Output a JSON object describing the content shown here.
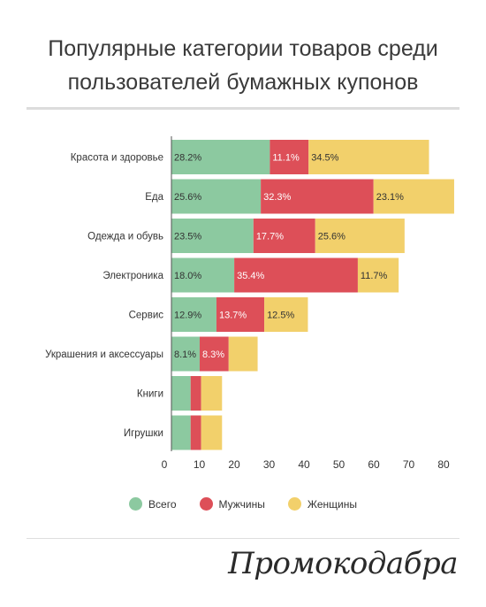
{
  "title": {
    "line1": "Популярные категории товаров среди",
    "line2": "пользователей бумажных купонов"
  },
  "brand": "Промокодабра",
  "colors": {
    "all": "#8cc9a0",
    "men": "#dd4f58",
    "women": "#f2d06b"
  },
  "chart_data": {
    "type": "bar",
    "orientation": "horizontal",
    "stacked": true,
    "categories": [
      "Красота и здоровье",
      "Еда",
      "Одежда и обувь",
      "Электроника",
      "Сервис",
      "Украшения и аксессуары",
      "Книги",
      "Игрушки"
    ],
    "series": [
      {
        "name": "Всего",
        "values": [
          28.2,
          25.6,
          23.5,
          18.0,
          12.9,
          8.1,
          5.5,
          5.5
        ],
        "labels": [
          "28.2%",
          "25.6%",
          "23.5%",
          "18.0%",
          "12.9%",
          "8.1%",
          "",
          ""
        ]
      },
      {
        "name": "Мужчины",
        "values": [
          11.1,
          32.3,
          17.7,
          35.4,
          13.7,
          8.3,
          3.0,
          3.0
        ],
        "labels": [
          "11.1%",
          "32.3%",
          "17.7%",
          "35.4%",
          "13.7%",
          "8.3%",
          "",
          ""
        ]
      },
      {
        "name": "Женщины",
        "values": [
          34.5,
          23.1,
          25.6,
          11.7,
          12.5,
          8.3,
          6.0,
          6.0
        ],
        "labels": [
          "34.5%",
          "23.1%",
          "25.6%",
          "11.7%",
          "12.5%",
          "",
          "",
          ""
        ]
      }
    ],
    "xlim": [
      0,
      80
    ],
    "xticks": [
      "0",
      "10",
      "20",
      "30",
      "40",
      "50",
      "60",
      "70",
      "80"
    ],
    "legend": "bottom",
    "grid": false
  }
}
